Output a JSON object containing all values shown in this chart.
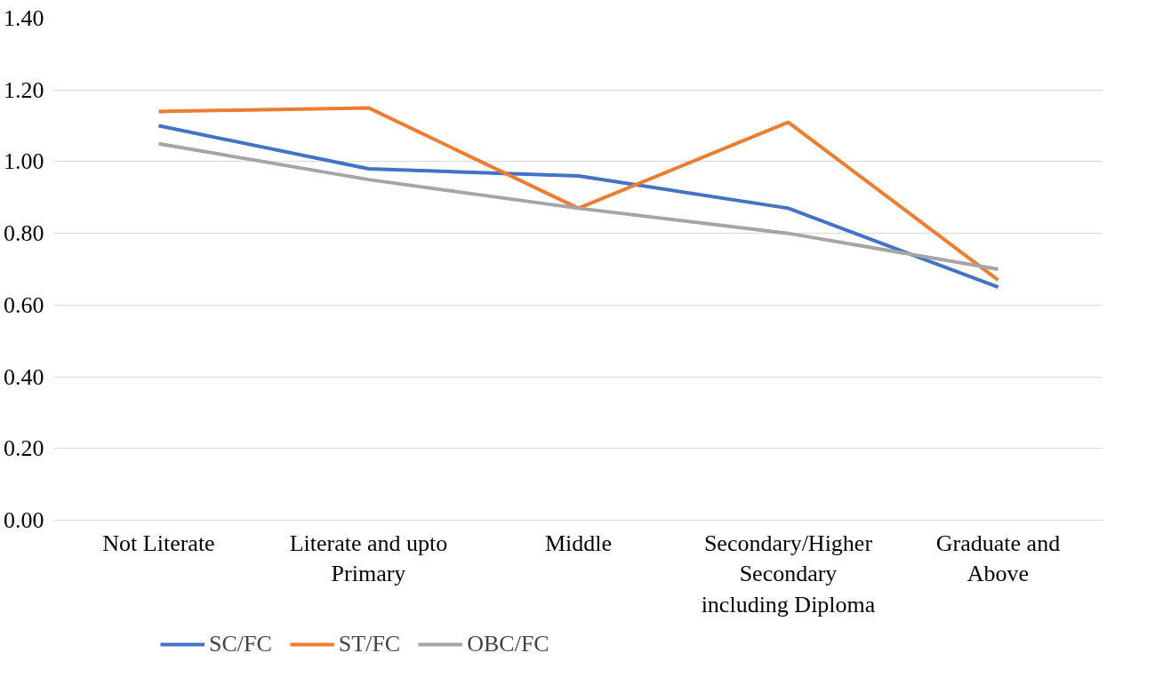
{
  "chart_data": {
    "type": "line",
    "categories": [
      "Not Literate",
      "Literate and upto Primary",
      "Middle",
      "Secondary/Higher Secondary including Diploma",
      "Graduate and Above"
    ],
    "series": [
      {
        "name": "SC/FC",
        "color": "#4472c4",
        "values": [
          1.1,
          0.98,
          0.96,
          0.87,
          0.65
        ]
      },
      {
        "name": "ST/FC",
        "color": "#ed7d31",
        "values": [
          1.14,
          1.15,
          0.87,
          1.11,
          0.67
        ]
      },
      {
        "name": "OBC/FC",
        "color": "#a5a5a5",
        "values": [
          1.05,
          0.95,
          0.87,
          0.8,
          0.7
        ]
      }
    ],
    "ylim": [
      0,
      1.4
    ],
    "yticks": [
      {
        "value": 0,
        "label": "0.00"
      },
      {
        "value": 0.2,
        "label": "0.20"
      },
      {
        "value": 0.4,
        "label": "0.40"
      },
      {
        "value": 0.6,
        "label": "0.60"
      },
      {
        "value": 0.8,
        "label": "0.80"
      },
      {
        "value": 1.0,
        "label": "1.00"
      },
      {
        "value": 1.2,
        "label": "1.20"
      },
      {
        "value": 1.4,
        "label": "1.40"
      }
    ],
    "grid": "y",
    "legend": "bottom left",
    "marker": "none",
    "line_style": "solid"
  }
}
